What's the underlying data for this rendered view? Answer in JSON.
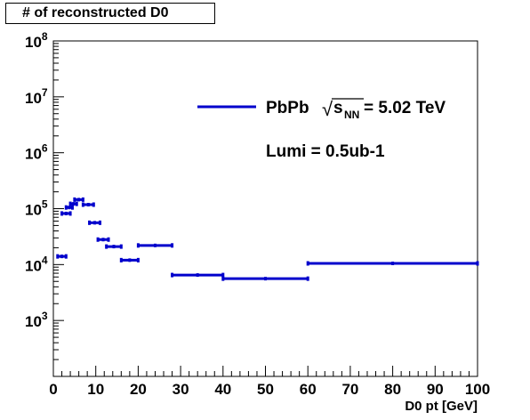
{
  "chart_data": {
    "type": "scatter",
    "title": "# of reconstructed D0",
    "xlabel": "D0 pt [GeV]",
    "ylabel": "",
    "xlim": [
      0,
      100
    ],
    "ylim": [
      100,
      100000000
    ],
    "yscale": "log",
    "grid": false,
    "x_ticks": [
      "0",
      "10",
      "20",
      "30",
      "40",
      "50",
      "60",
      "70",
      "80",
      "90",
      "100"
    ],
    "y_ticks": [
      {
        "value": 1000,
        "exp": "3"
      },
      {
        "value": 10000,
        "exp": "4"
      },
      {
        "value": 100000,
        "exp": "5"
      },
      {
        "value": 1000000,
        "exp": "6"
      },
      {
        "value": 10000000,
        "exp": "7"
      },
      {
        "value": 100000000,
        "exp": "8"
      }
    ],
    "y_tick_base": "10",
    "series": [
      {
        "name": "PbPb",
        "color": "#0000cc",
        "bins": [
          {
            "x_low": 1,
            "x_high": 3,
            "y": 14000
          },
          {
            "x_low": 2,
            "x_high": 4,
            "y": 82000
          },
          {
            "x_low": 3,
            "x_high": 4.5,
            "y": 105000
          },
          {
            "x_low": 4,
            "x_high": 5.5,
            "y": 122000
          },
          {
            "x_low": 5,
            "x_high": 7,
            "y": 145000
          },
          {
            "x_low": 7,
            "x_high": 9.5,
            "y": 118000
          },
          {
            "x_low": 8.5,
            "x_high": 11,
            "y": 56000
          },
          {
            "x_low": 10.5,
            "x_high": 13,
            "y": 28000
          },
          {
            "x_low": 12.5,
            "x_high": 16,
            "y": 21000
          },
          {
            "x_low": 16,
            "x_high": 20,
            "y": 12000
          },
          {
            "x_low": 20,
            "x_high": 28,
            "y": 22000
          },
          {
            "x_low": 28,
            "x_high": 40,
            "y": 6500
          },
          {
            "x_low": 40,
            "x_high": 60,
            "y": 5600
          },
          {
            "x_low": 60,
            "x_high": 100,
            "y": 10500
          }
        ]
      }
    ],
    "legend": {
      "position": "top-right",
      "label_prefix": "PbPb",
      "sqrt_symbol": "√",
      "sqrt_var": "s",
      "sqrt_sub": "NN",
      "label_suffix": "= 5.02 TeV",
      "lumi": "Lumi = 0.5ub-1"
    }
  }
}
